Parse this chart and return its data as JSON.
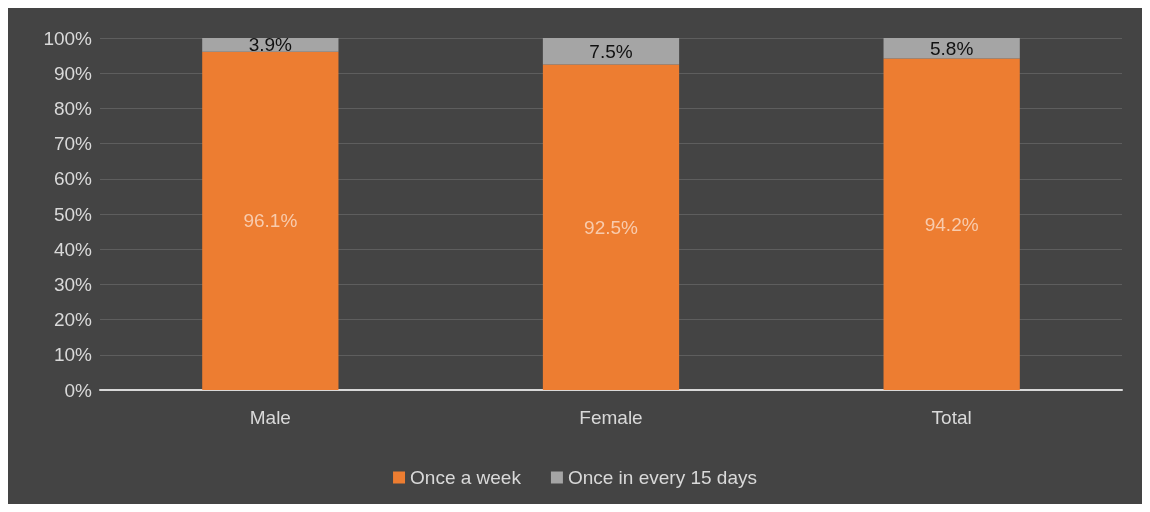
{
  "chart_data": {
    "type": "bar",
    "stacked": true,
    "categories": [
      "Male",
      "Female",
      "Total"
    ],
    "series": [
      {
        "name": "Once a week",
        "color": "#ed7d31",
        "values": [
          96.1,
          92.5,
          94.2
        ],
        "value_labels": [
          "96.1%",
          "92.5%",
          "94.2%"
        ]
      },
      {
        "name": "Once in every 15 days",
        "color": "#a5a5a5",
        "values": [
          3.9,
          7.5,
          5.8
        ],
        "value_labels": [
          "3.9%",
          "7.5%",
          "5.8%"
        ]
      }
    ],
    "ylim": [
      0,
      100
    ],
    "yticks": [
      {
        "value": 0,
        "label": "0%"
      },
      {
        "value": 10,
        "label": "10%"
      },
      {
        "value": 20,
        "label": "20%"
      },
      {
        "value": 30,
        "label": "30%"
      },
      {
        "value": 40,
        "label": "40%"
      },
      {
        "value": 50,
        "label": "50%"
      },
      {
        "value": 60,
        "label": "60%"
      },
      {
        "value": 70,
        "label": "70%"
      },
      {
        "value": 80,
        "label": "80%"
      },
      {
        "value": 90,
        "label": "90%"
      },
      {
        "value": 100,
        "label": "100%"
      }
    ],
    "grid": "y",
    "legend": "bottom"
  }
}
